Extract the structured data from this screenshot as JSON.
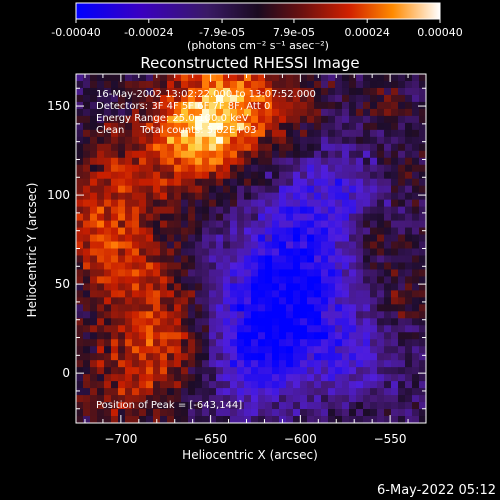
{
  "chart_data": {
    "type": "heatmap",
    "title": "Reconstructed RHESSI Image",
    "xlabel": "Heliocentric X (arcsec)",
    "ylabel": "Heliocentric Y (arcsec)",
    "xlim": [
      -725,
      -530
    ],
    "ylim": [
      -28,
      168
    ],
    "x_ticks": [
      -700,
      -650,
      -600,
      -550
    ],
    "y_ticks": [
      0,
      50,
      100,
      150
    ],
    "colorbar": {
      "min": -0.0004,
      "max": 0.0004,
      "tick_values": [
        -0.0004,
        -0.00024,
        -7.9e-05,
        7.9e-05,
        0.00024,
        0.0004
      ],
      "tick_labels": [
        "-0.00040",
        "-0.00024",
        "-7.9e-05",
        "7.9e-05",
        "0.00024",
        "0.00040"
      ],
      "unit_label": "(photons cm⁻² s⁻¹ asec⁻²)"
    },
    "info_lines": [
      "16-May-2002 13:02:22.000 to 13:07:52.000",
      "Detectors: 3F 4F 5F 6F 7F 8F, Att 0",
      "Energy Range: 25.0-100.0 keV",
      "Clean     Total counts: 5.82E+03"
    ],
    "peak_label": "Position of Peak = [-643,144]",
    "peak": {
      "x": -643,
      "y": 144
    },
    "colormap": [
      "#0000ff",
      "#5000c0",
      "#3a1a66",
      "#1e0d2c",
      "#5a1a1a",
      "#c01a00",
      "#ff5a00",
      "#ffc030",
      "#ffffff"
    ],
    "grid": false,
    "legend": "colorbar at top"
  },
  "footer": {
    "timestamp": "6-May-2022 05:12"
  }
}
